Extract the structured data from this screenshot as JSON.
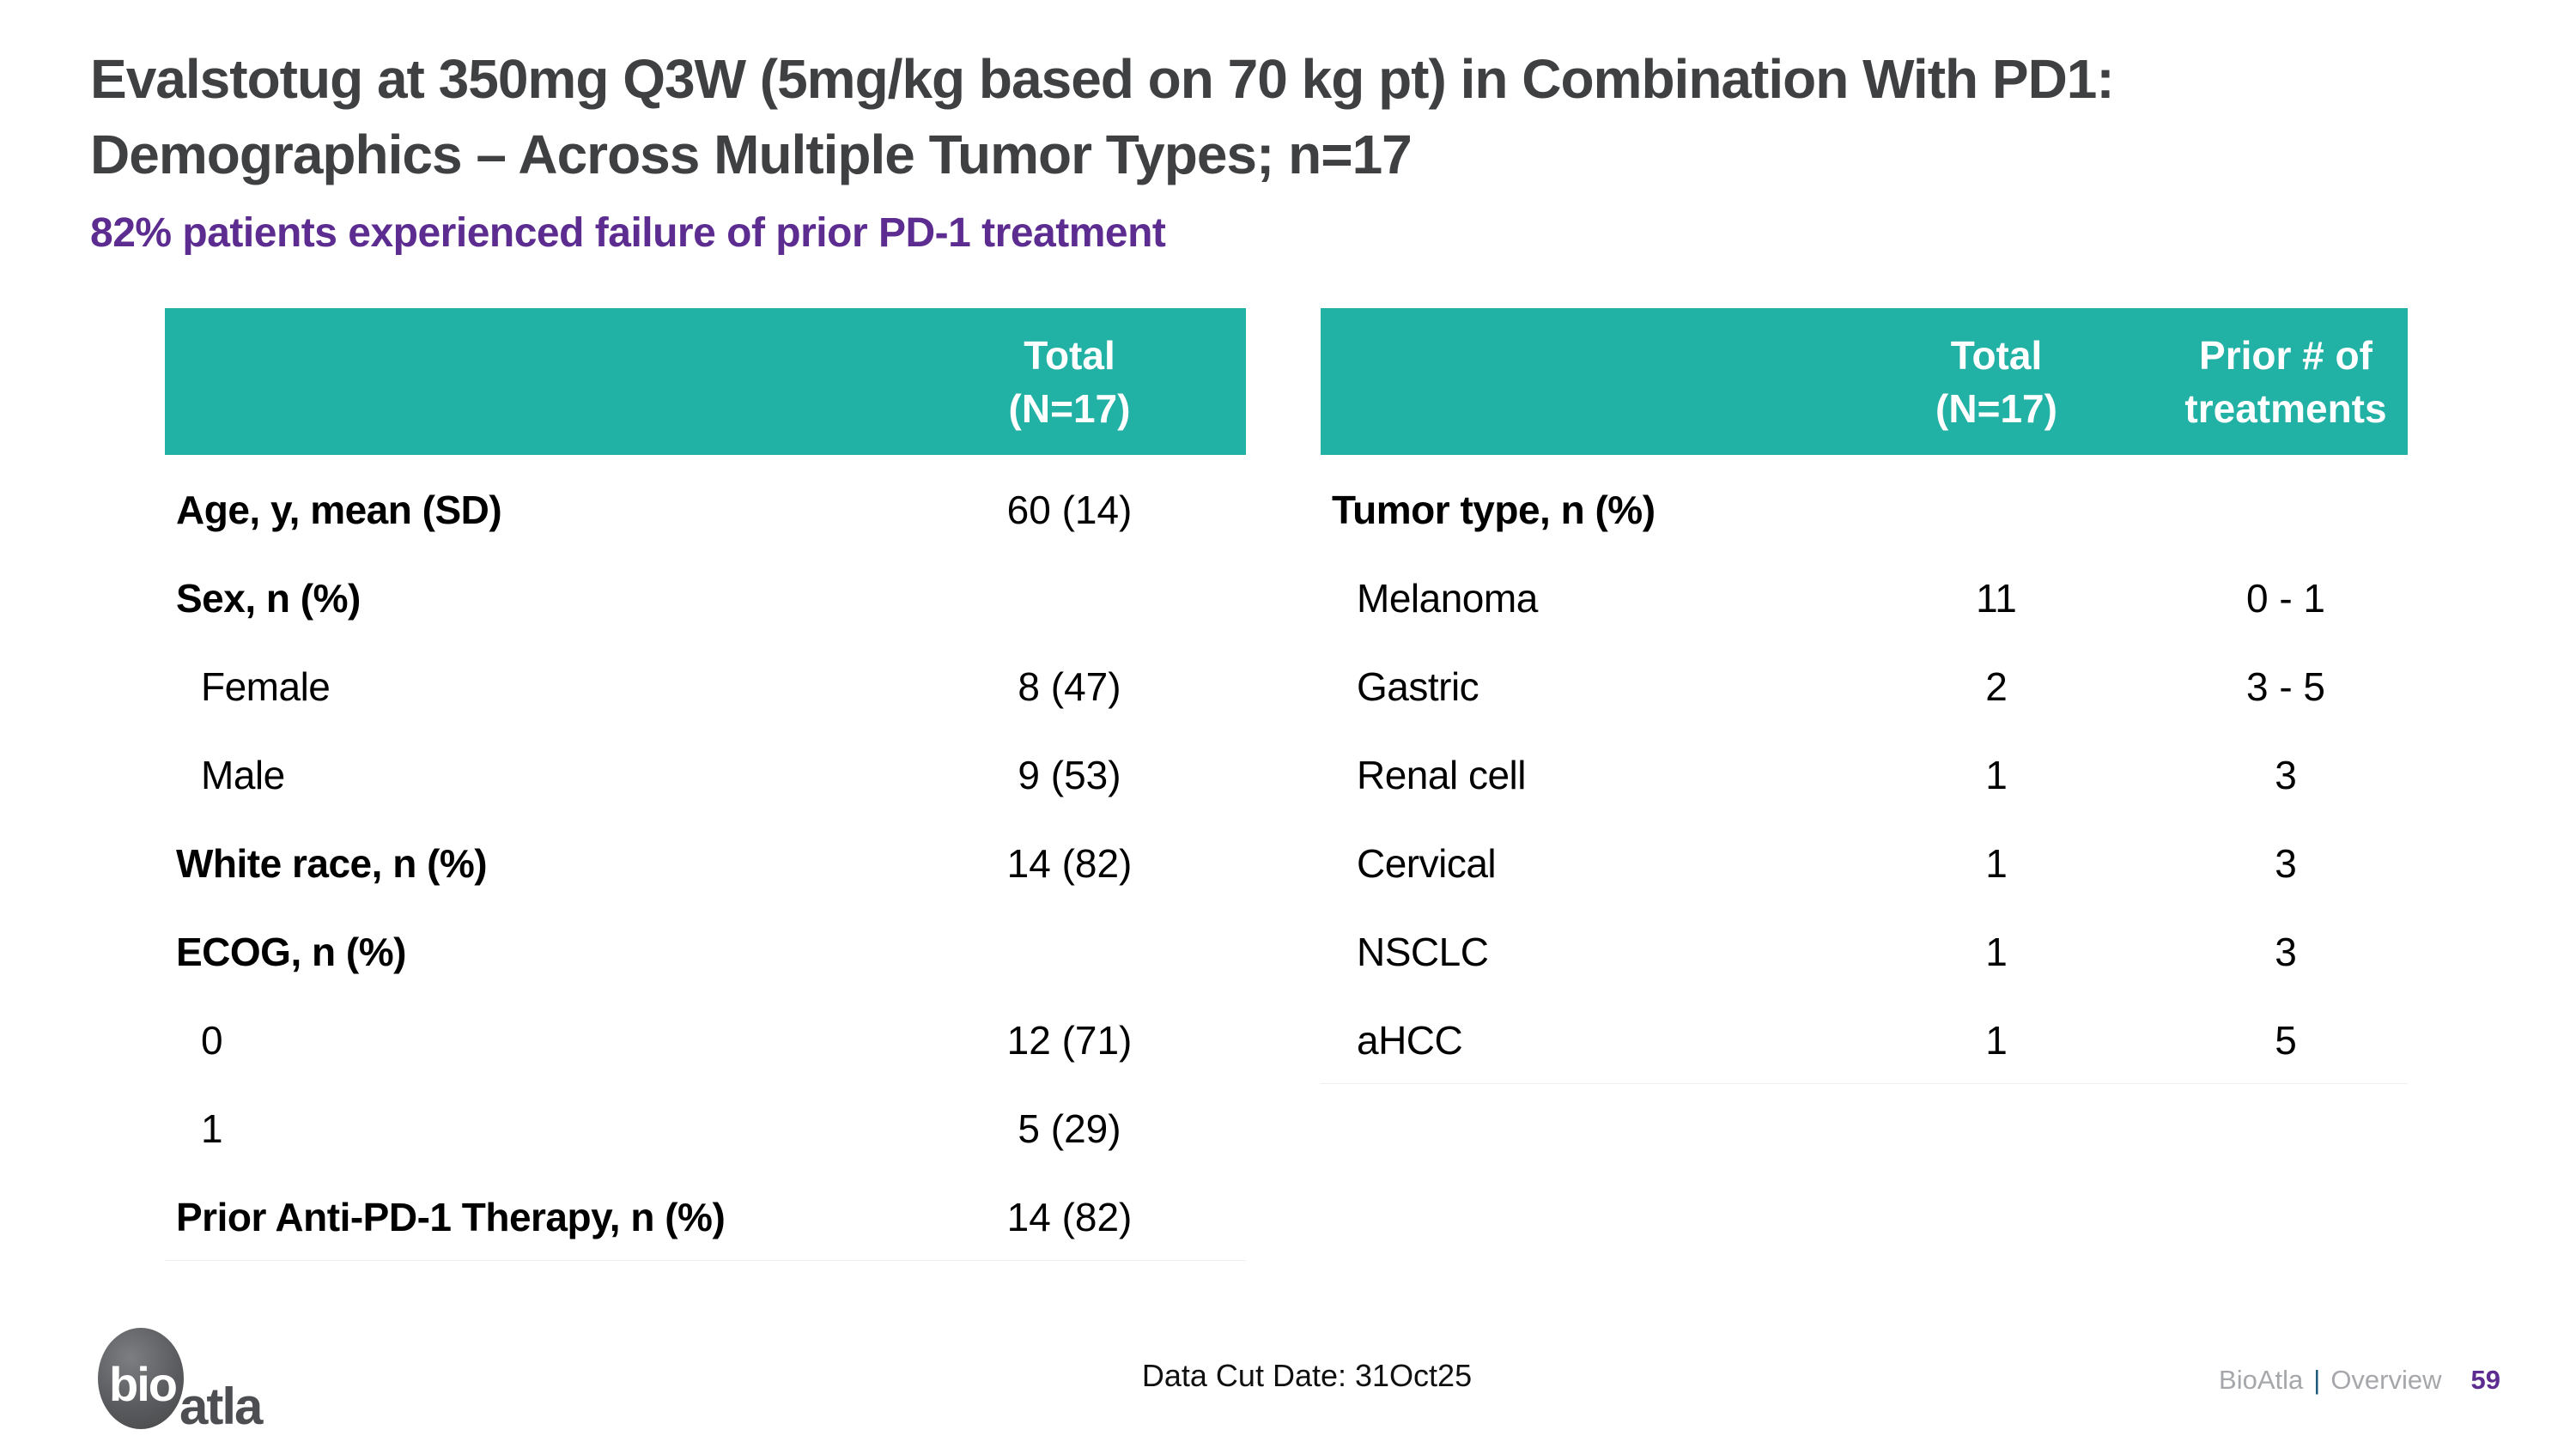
{
  "slide": {
    "title_line1": "Evalstotug at 350mg Q3W (5mg/kg based on 70 kg pt) in Combination With PD1:",
    "title_line2": "Demographics – Across Multiple Tumor Types; n=17",
    "subtitle": "82% patients experienced failure of prior PD-1 treatment"
  },
  "colors": {
    "header_teal": "#21b1a5",
    "subtitle_purple": "#5d2c90",
    "title_gray": "#3f4042",
    "footer_gray": "#a5a7aa",
    "pipe_blue": "#1e5b7a",
    "page_number_purple": "#5d2c90"
  },
  "left_table": {
    "header": {
      "total_line1": "Total",
      "total_line2": "(N=17)"
    },
    "rows": [
      {
        "label": "Age, y, mean (SD)",
        "value": "60 (14)"
      },
      {
        "label": "Sex, n (%)",
        "value": ""
      },
      {
        "label": "Female",
        "value": "8 (47)"
      },
      {
        "label": "Male",
        "value": "9 (53)"
      },
      {
        "label": "White race, n (%)",
        "value": "14 (82)"
      },
      {
        "label": "ECOG, n (%)",
        "value": ""
      },
      {
        "label": "0",
        "value": "12 (71)"
      },
      {
        "label": "1",
        "value": "5 (29)"
      },
      {
        "label": "Prior Anti-PD-1 Therapy, n (%)",
        "value": "14 (82)"
      }
    ]
  },
  "right_table": {
    "header": {
      "total_line1": "Total",
      "total_line2": "(N=17)",
      "prior_line1": "Prior # of",
      "prior_line2": "treatments"
    },
    "rows": [
      {
        "label": "Tumor type, n (%)",
        "total": "",
        "prior": ""
      },
      {
        "label": "Melanoma",
        "total": "11",
        "prior": "0 - 1"
      },
      {
        "label": "Gastric",
        "total": "2",
        "prior": "3 - 5"
      },
      {
        "label": "Renal cell",
        "total": "1",
        "prior": "3"
      },
      {
        "label": "Cervical",
        "total": "1",
        "prior": "3"
      },
      {
        "label": "NSCLC",
        "total": "1",
        "prior": "3"
      },
      {
        "label": "aHCC",
        "total": "1",
        "prior": "5"
      }
    ]
  },
  "footer": {
    "logo_bio": "bio",
    "logo_atla": "atla",
    "data_cut": "Data Cut Date: 31Oct25",
    "brand": "BioAtla",
    "pipe": "|",
    "section": "Overview",
    "page": "59"
  }
}
